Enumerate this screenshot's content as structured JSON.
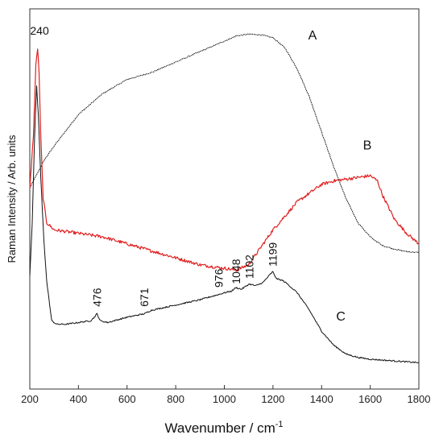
{
  "chart_data": {
    "type": "line",
    "xlabel": "Wavenumber / cm",
    "xlabel_sup": "-1",
    "ylabel": "Raman Intensity / Arb. units",
    "xlim": [
      200,
      1800
    ],
    "ylim": [
      0,
      1
    ],
    "x_ticks": [
      200,
      400,
      600,
      800,
      1000,
      1200,
      1400,
      1600,
      1800
    ],
    "y_ticks_labeled": false,
    "series": [
      {
        "name": "A",
        "color": "#111111",
        "style": "dotted",
        "x": [
          200,
          230,
          260,
          300,
          400,
          500,
          600,
          700,
          800,
          900,
          1000,
          1050,
          1100,
          1150,
          1200,
          1250,
          1300,
          1350,
          1400,
          1450,
          1500,
          1550,
          1600,
          1650,
          1700,
          1750,
          1800
        ],
        "y": [
          0.55,
          0.59,
          0.63,
          0.67,
          0.76,
          0.82,
          0.86,
          0.88,
          0.91,
          0.94,
          0.97,
          0.985,
          0.99,
          0.988,
          0.98,
          0.95,
          0.89,
          0.81,
          0.71,
          0.61,
          0.52,
          0.45,
          0.41,
          0.385,
          0.375,
          0.368,
          0.365
        ]
      },
      {
        "name": "B",
        "color": "#e02020",
        "style": "solid",
        "x": [
          200,
          215,
          225,
          232,
          238,
          245,
          255,
          270,
          300,
          400,
          500,
          600,
          700,
          800,
          900,
          1000,
          1050,
          1100,
          1150,
          1200,
          1300,
          1400,
          1450,
          1500,
          1550,
          1600,
          1630,
          1650,
          1700,
          1750,
          1800
        ],
        "y": [
          0.55,
          0.7,
          0.9,
          0.95,
          0.88,
          0.7,
          0.52,
          0.45,
          0.43,
          0.42,
          0.41,
          0.39,
          0.37,
          0.35,
          0.33,
          0.32,
          0.315,
          0.33,
          0.38,
          0.43,
          0.51,
          0.56,
          0.57,
          0.575,
          0.58,
          0.585,
          0.57,
          0.53,
          0.46,
          0.42,
          0.39
        ]
      },
      {
        "name": "C",
        "color": "#111111",
        "style": "solid",
        "x": [
          200,
          210,
          220,
          228,
          235,
          245,
          258,
          270,
          290,
          310,
          350,
          400,
          450,
          465,
          476,
          490,
          520,
          600,
          671,
          700,
          800,
          900,
          950,
          976,
          1000,
          1030,
          1048,
          1070,
          1102,
          1130,
          1160,
          1185,
          1199,
          1215,
          1240,
          1260,
          1300,
          1350,
          1400,
          1450,
          1500,
          1550,
          1600,
          1700,
          1800
        ],
        "y": [
          0.3,
          0.45,
          0.7,
          0.84,
          0.76,
          0.58,
          0.4,
          0.28,
          0.17,
          0.16,
          0.16,
          0.165,
          0.17,
          0.18,
          0.19,
          0.17,
          0.165,
          0.18,
          0.19,
          0.2,
          0.215,
          0.23,
          0.24,
          0.245,
          0.25,
          0.255,
          0.265,
          0.26,
          0.275,
          0.27,
          0.28,
          0.3,
          0.31,
          0.29,
          0.285,
          0.275,
          0.25,
          0.2,
          0.14,
          0.1,
          0.075,
          0.065,
          0.06,
          0.055,
          0.05
        ]
      }
    ],
    "series_labels": [
      {
        "text": "A",
        "x": 1345,
        "y": 0.975
      },
      {
        "text": "B",
        "x": 1570,
        "y": 0.66
      },
      {
        "text": "C",
        "x": 1460,
        "y": 0.17
      }
    ],
    "annotations": [
      {
        "text": "240",
        "x": 240,
        "y": 1.0,
        "rotated": false
      },
      {
        "text": "476",
        "x": 476,
        "y": 0.21,
        "rotated": true
      },
      {
        "text": "671",
        "x": 671,
        "y": 0.21,
        "rotated": true
      },
      {
        "text": "976",
        "x": 976,
        "y": 0.265,
        "rotated": true
      },
      {
        "text": "1048",
        "x": 1048,
        "y": 0.275,
        "rotated": true
      },
      {
        "text": "1102",
        "x": 1102,
        "y": 0.29,
        "rotated": true
      },
      {
        "text": "1199",
        "x": 1199,
        "y": 0.325,
        "rotated": true
      }
    ]
  }
}
